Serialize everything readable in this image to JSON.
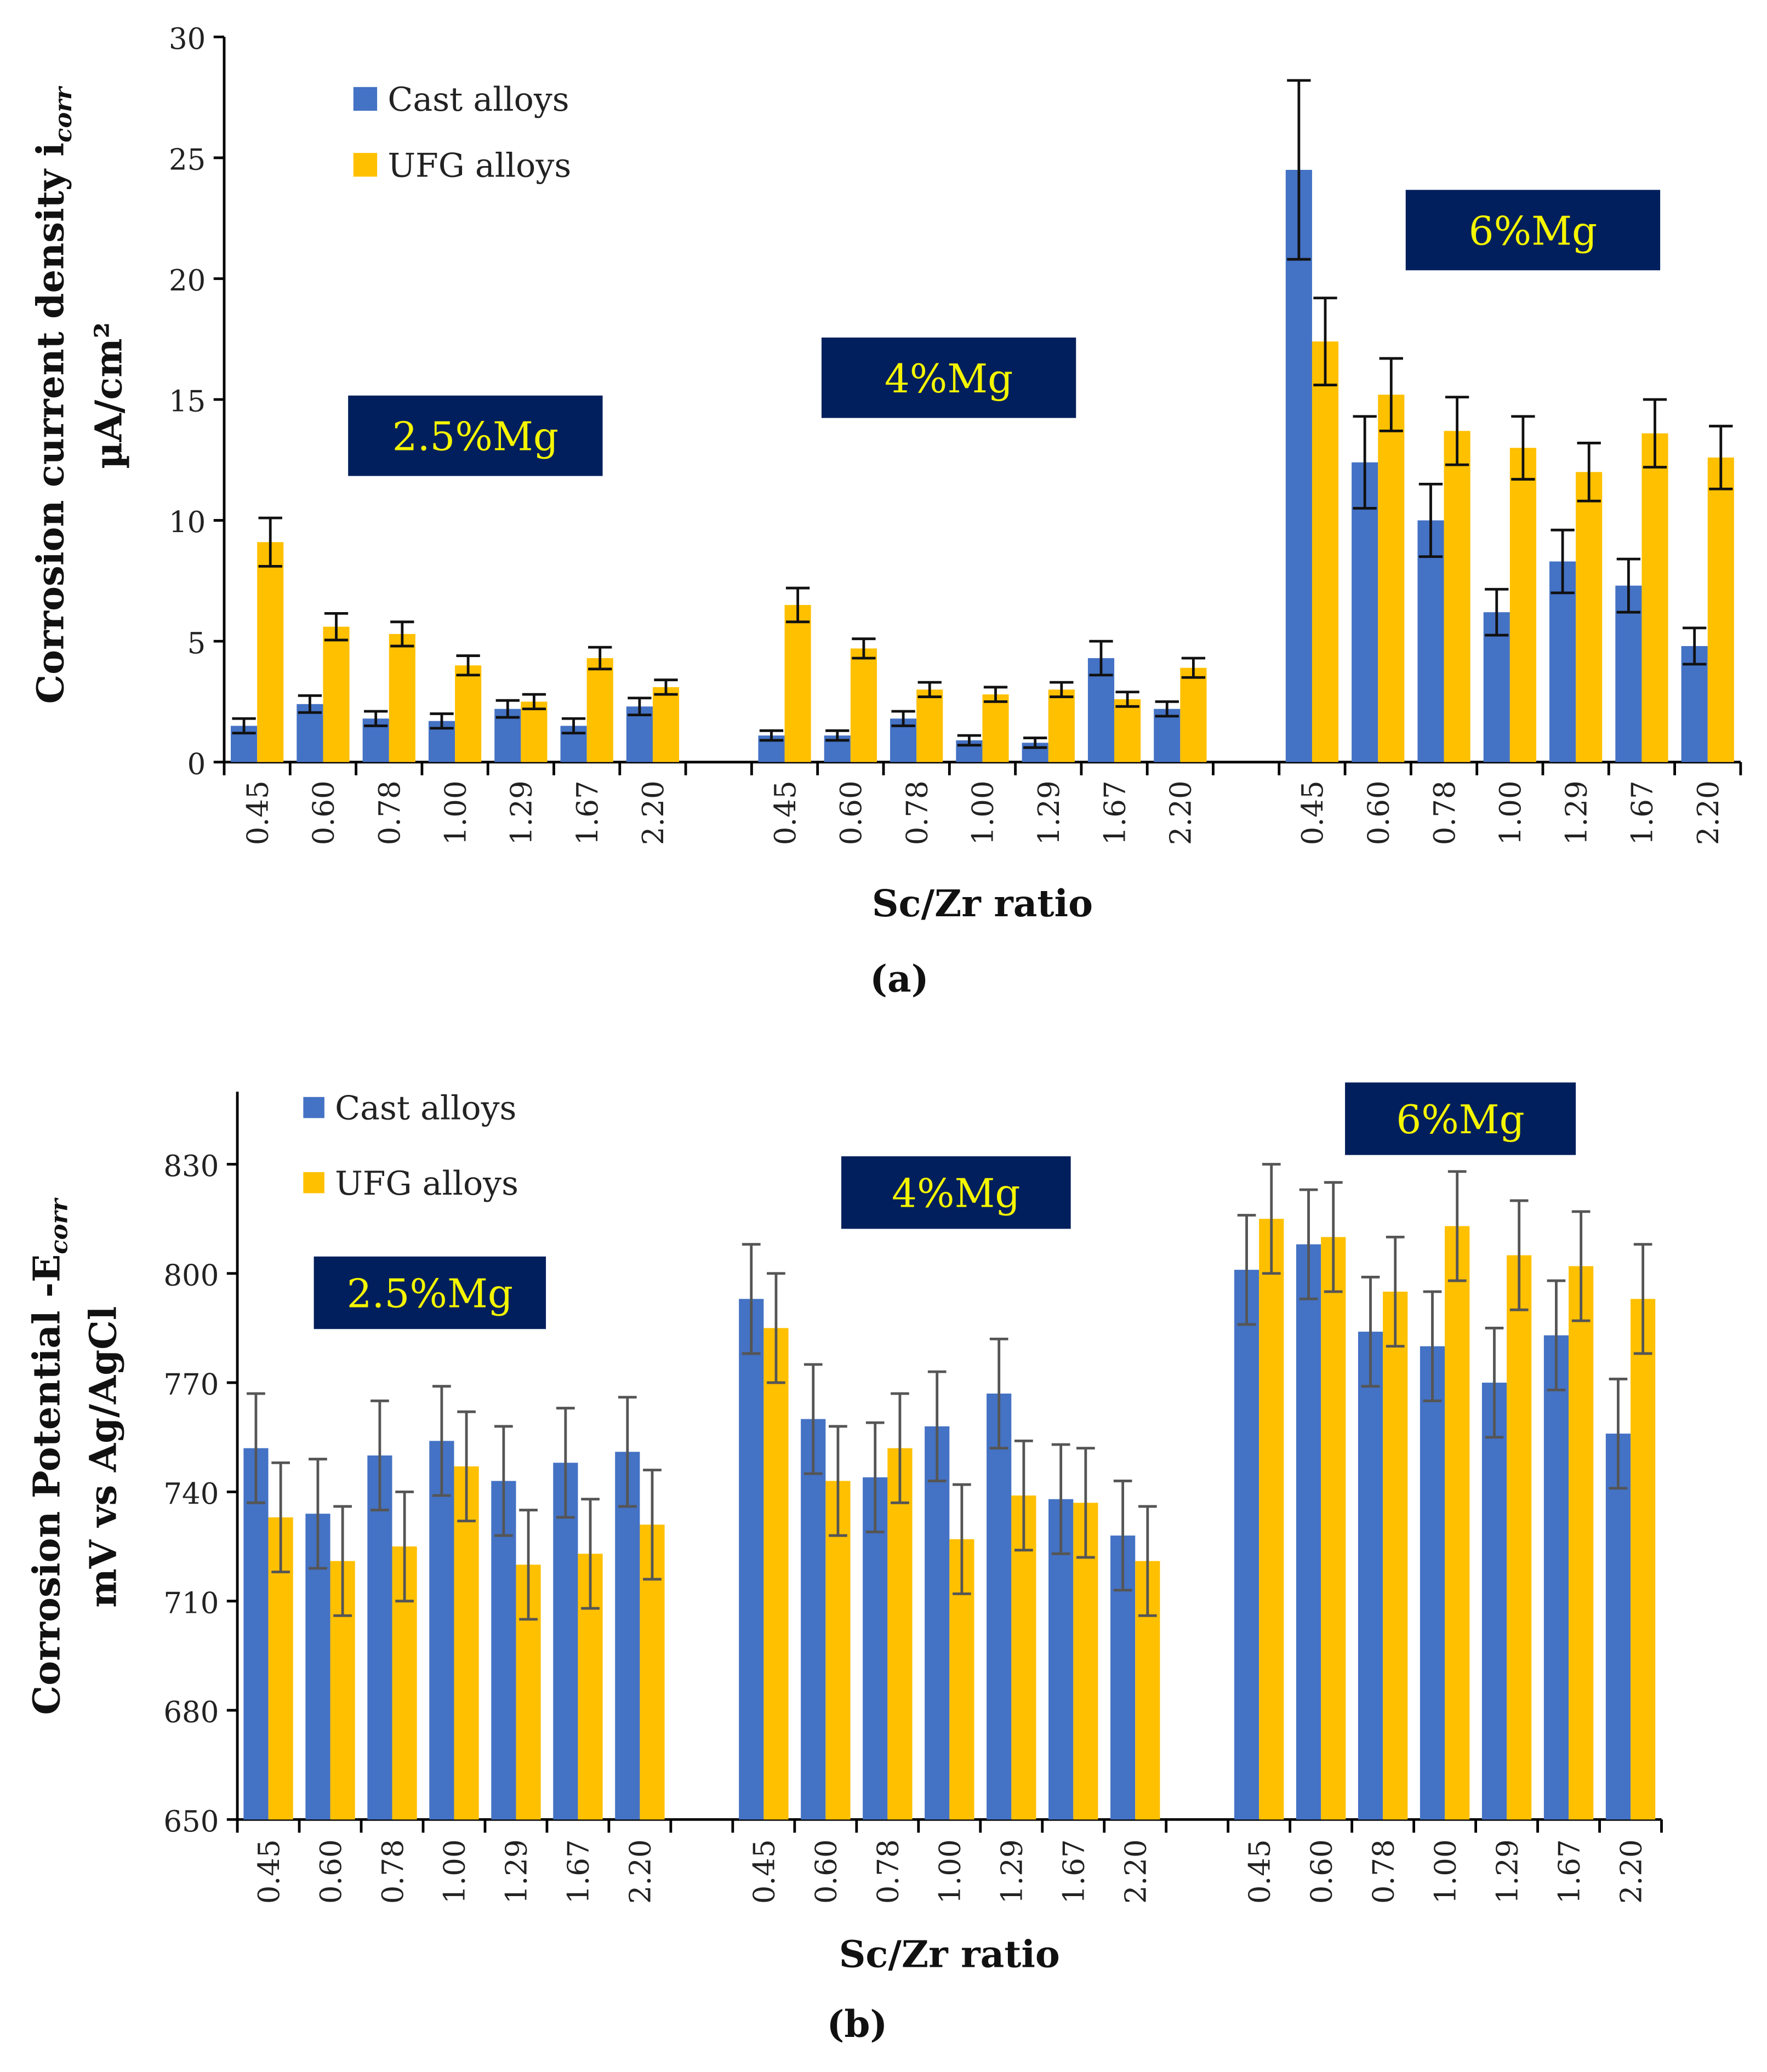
{
  "colors": {
    "cast": "#4472C4",
    "ufg": "#FFC000",
    "box": "#001F5C",
    "box_text": "#F5F500"
  },
  "chart_data": [
    {
      "type": "bar",
      "panel_label": "(a)",
      "ylabel_line1": "Corrosion current density i",
      "ylabel_sub": "corr",
      "ylabel_line2": "µA/cm²",
      "xlabel": "Sc/Zr ratio",
      "ylim": [
        0,
        30
      ],
      "yticks": [
        0,
        5,
        10,
        15,
        20,
        25,
        30
      ],
      "legend": [
        "Cast alloys",
        "UFG alloys"
      ],
      "legend_position": "top-left",
      "groups": [
        {
          "label": "2.5%Mg",
          "categories": [
            "0.45",
            "0.60",
            "0.78",
            "1.00",
            "1.29",
            "1.67",
            "2.20"
          ],
          "cast": [
            1.5,
            2.4,
            1.8,
            1.7,
            2.2,
            1.5,
            2.3
          ],
          "cast_err": [
            0.3,
            0.35,
            0.3,
            0.3,
            0.35,
            0.3,
            0.35
          ],
          "ufg": [
            9.1,
            5.6,
            5.3,
            4.0,
            2.5,
            4.3,
            3.1
          ],
          "ufg_err": [
            1.0,
            0.55,
            0.5,
            0.4,
            0.3,
            0.45,
            0.3
          ]
        },
        {
          "label": "4%Mg",
          "categories": [
            "0.45",
            "0.60",
            "0.78",
            "1.00",
            "1.29",
            "1.67",
            "2.20"
          ],
          "cast": [
            1.1,
            1.1,
            1.8,
            0.9,
            0.8,
            4.3,
            2.2
          ],
          "cast_err": [
            0.2,
            0.2,
            0.3,
            0.2,
            0.2,
            0.7,
            0.3
          ],
          "ufg": [
            6.5,
            4.7,
            3.0,
            2.8,
            3.0,
            2.6,
            3.9
          ],
          "ufg_err": [
            0.7,
            0.4,
            0.3,
            0.3,
            0.3,
            0.3,
            0.4
          ]
        },
        {
          "label": "6%Mg",
          "categories": [
            "0.45",
            "0.60",
            "0.78",
            "1.00",
            "1.29",
            "1.67",
            "2.20"
          ],
          "cast": [
            24.5,
            12.4,
            10.0,
            6.2,
            8.3,
            7.3,
            4.8
          ],
          "cast_err": [
            3.7,
            1.9,
            1.5,
            0.95,
            1.3,
            1.1,
            0.75
          ],
          "ufg": [
            17.4,
            15.2,
            13.7,
            13.0,
            12.0,
            13.6,
            12.6
          ],
          "ufg_err": [
            1.8,
            1.5,
            1.4,
            1.3,
            1.2,
            1.4,
            1.3
          ]
        }
      ]
    },
    {
      "type": "bar",
      "panel_label": "(b)",
      "ylabel_line1": "Corrosion Potential -E",
      "ylabel_sub": "corr",
      "ylabel_line2": "mV vs Ag/AgCl",
      "xlabel": "Sc/Zr ratio",
      "ylim": [
        650,
        850
      ],
      "yticks": [
        650,
        680,
        710,
        740,
        770,
        800,
        830
      ],
      "legend": [
        "Cast alloys",
        "UFG alloys"
      ],
      "legend_position": "top-left",
      "groups": [
        {
          "label": "2.5%Mg",
          "categories": [
            "0.45",
            "0.60",
            "0.78",
            "1.00",
            "1.29",
            "1.67",
            "2.20"
          ],
          "cast": [
            752,
            734,
            750,
            754,
            743,
            748,
            751
          ],
          "cast_err": [
            15,
            15,
            15,
            15,
            15,
            15,
            15
          ],
          "ufg": [
            733,
            721,
            725,
            747,
            720,
            723,
            731
          ],
          "ufg_err": [
            15,
            15,
            15,
            15,
            15,
            15,
            15
          ]
        },
        {
          "label": "4%Mg",
          "categories": [
            "0.45",
            "0.60",
            "0.78",
            "1.00",
            "1.29",
            "1.67",
            "2.20"
          ],
          "cast": [
            793,
            760,
            744,
            758,
            767,
            738,
            728
          ],
          "cast_err": [
            15,
            15,
            15,
            15,
            15,
            15,
            15
          ],
          "ufg": [
            785,
            743,
            752,
            727,
            739,
            737,
            721
          ],
          "ufg_err": [
            15,
            15,
            15,
            15,
            15,
            15,
            15
          ]
        },
        {
          "label": "6%Mg",
          "categories": [
            "0.45",
            "0.60",
            "0.78",
            "1.00",
            "1.29",
            "1.67",
            "2.20"
          ],
          "cast": [
            801,
            808,
            784,
            780,
            770,
            783,
            756
          ],
          "cast_err": [
            15,
            15,
            15,
            15,
            15,
            15,
            15
          ],
          "ufg": [
            815,
            810,
            795,
            813,
            805,
            802,
            793
          ],
          "ufg_err": [
            15,
            15,
            15,
            15,
            15,
            15,
            15
          ]
        }
      ]
    }
  ]
}
